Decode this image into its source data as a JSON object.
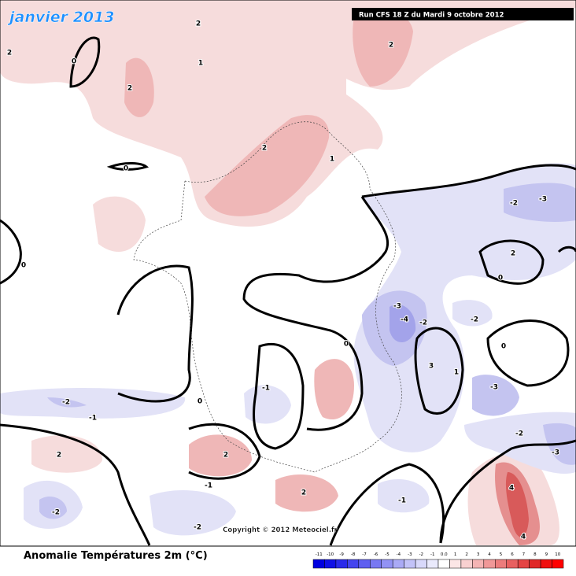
{
  "header": {
    "title": "janvier 2013",
    "run": "Run CFS 18 Z du Mardi 9 octobre 2012"
  },
  "footer": {
    "copyright": "Copyright © 2012 Meteociel.fr"
  },
  "legend": {
    "title": "Anomalie Températures 2m (°C)",
    "labels": [
      "-11",
      "-10",
      "-9",
      "-8",
      "-7",
      "-6",
      "-5",
      "-4",
      "-3",
      "-2",
      "-1",
      "0.0",
      "1",
      "2",
      "3",
      "4",
      "5",
      "6",
      "7",
      "8",
      "9",
      "10"
    ],
    "colors": [
      "#0000e0",
      "#1010e6",
      "#2a2aea",
      "#4444ee",
      "#5e5ef0",
      "#7878f2",
      "#9292f4",
      "#aaaaf6",
      "#c2c2f8",
      "#d8d8fa",
      "#eaeafc",
      "#ffffff",
      "#fce6e6",
      "#f8d0d0",
      "#f4b4b4",
      "#f09898",
      "#ec7c7c",
      "#e86060",
      "#e44444",
      "#e02828",
      "#f01010",
      "#ff0000"
    ]
  },
  "contour_labels": [
    "2",
    "2",
    "0",
    "2",
    "1",
    "0",
    "2",
    "1",
    "2",
    "-2",
    "-3",
    "2",
    "0",
    "-3",
    "-4",
    "-2",
    "-2",
    "3",
    "1",
    "-3",
    "0",
    "-1",
    "-2",
    "-1",
    "2",
    "2",
    "-1",
    "2",
    "-1",
    "-2",
    "-2",
    "-2",
    "-3",
    "4",
    "4",
    "0",
    "0",
    "0"
  ]
}
